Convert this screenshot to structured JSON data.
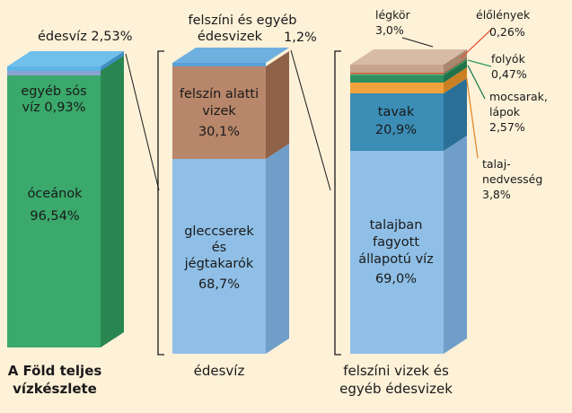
{
  "chart_data": [
    {
      "type": "bar",
      "title": "A Föld teljes vízkészlete",
      "unit": "%",
      "categories": [
        "óceánok",
        "egyéb sós víz",
        "édesvíz"
      ],
      "values": [
        96.54,
        0.93,
        2.53
      ],
      "labels": {
        "oceans": [
          "óceánok",
          "96,54%"
        ],
        "saline": [
          "egyéb sós",
          "víz 0,93%"
        ],
        "fresh": [
          "édesvíz 2,53%"
        ]
      },
      "colors": {
        "oceans": "#3aa96b",
        "saline": "#8aa2d0",
        "fresh": "#5db3e4"
      }
    },
    {
      "type": "bar",
      "title": "édesvíz",
      "unit": "%",
      "categories": [
        "gleccserek és jégtakarók",
        "felszín alatti vizek",
        "felszíni és egyéb édesvizek"
      ],
      "values": [
        68.7,
        30.1,
        1.2
      ],
      "labels": {
        "glaciers": [
          "gleccserek",
          "és",
          "jégtakarók",
          "68,7%"
        ],
        "ground": [
          "felszín alatti",
          "vizek",
          "30,1%"
        ],
        "surface": [
          "felszíni és egyéb",
          "édesvizek",
          "1,2%"
        ]
      },
      "colors": {
        "glaciers": "#8fbfe6",
        "ground": "#b8866a",
        "surface": "#5a9fd6"
      }
    },
    {
      "type": "bar",
      "title": "felszíni vizek és egyéb édesvizek",
      "unit": "%",
      "categories": [
        "talajban fagyott állapotú víz",
        "tavak",
        "talajnedvesség",
        "mocsarak, lápok",
        "folyók",
        "élőlények",
        "légkör"
      ],
      "values": [
        69.0,
        20.9,
        3.8,
        2.57,
        0.47,
        0.26,
        3.0
      ],
      "labels": {
        "permafrost": [
          "talajban",
          "fagyott",
          "állapotú víz",
          "69,0%"
        ],
        "lakes": [
          "tavak",
          "20,9%"
        ],
        "soil": [
          "talaj-",
          "nedvesség",
          "3,8%"
        ],
        "marsh": [
          "mocsarak,",
          "lápok",
          "2,57%"
        ],
        "rivers": [
          "folyók",
          "0,47%"
        ],
        "living": [
          "élőlények",
          "0,26%"
        ],
        "atmosphere": [
          "légkör",
          "3,0%"
        ]
      },
      "colors": {
        "permafrost": "#8fbfe6",
        "lakes": "#3b8db5",
        "soil": "#f2a23c",
        "marsh": "#2f8f5f",
        "rivers": "#55b07a",
        "living": "#e05a3a",
        "atmosphere": "#c7a48c"
      }
    }
  ],
  "side_colors": {
    "oceans": "#2a8650",
    "fresh": "#3f8fc4",
    "glaciers": "#6f9fc8",
    "ground": "#8f6248",
    "surface": "#3c80b8",
    "permafrost": "#6f9fc8",
    "lakes": "#2a6f96",
    "soil": "#c98024",
    "marsh": "#20724a",
    "rivers": "#3b8f5e",
    "living": "#b8462b",
    "atmosphere": "#a8876f"
  },
  "top_colors": {
    "fresh": "#70c0eb",
    "surface": "#6fb0e0",
    "atmosphere": "#d8bba6"
  },
  "annotation_colors": {
    "living": "#e05a3a",
    "rivers": "#2f9a60",
    "marsh": "#1f7a4e",
    "soil": "#e08a2c"
  }
}
